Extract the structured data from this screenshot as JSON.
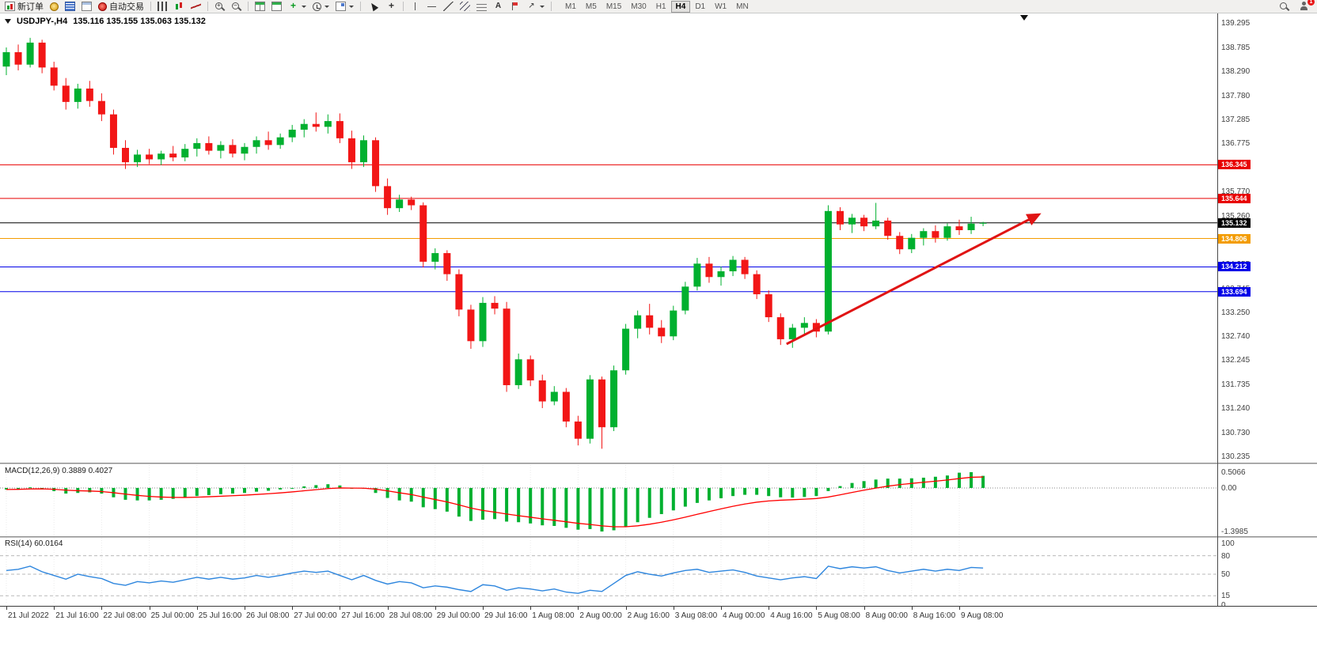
{
  "toolbar": {
    "buttons": [
      {
        "name": "new-order",
        "label": "新订单",
        "icon": "new-order"
      },
      {
        "name": "expert-advisors",
        "icon": "expert-advisors"
      },
      {
        "name": "market-watch",
        "icon": "market-watch"
      },
      {
        "name": "data-window",
        "icon": "data-window"
      },
      {
        "name": "auto-trading",
        "label": "自动交易",
        "icon": "auto-trading"
      },
      {
        "sep": true
      },
      {
        "name": "bars-chart",
        "icon": "bars-chart"
      },
      {
        "name": "candlestick-chart",
        "icon": "candlestick-chart"
      },
      {
        "name": "line-chart",
        "icon": "line-chart"
      },
      {
        "sep": true
      },
      {
        "name": "zoom-in",
        "icon": "zoom-in",
        "glyph": "+"
      },
      {
        "name": "zoom-out",
        "icon": "zoom-out",
        "glyph": "−"
      },
      {
        "sep": true
      },
      {
        "name": "tile-windows",
        "icon": "tile-windows"
      },
      {
        "name": "new-chart",
        "icon": "new-chart"
      },
      {
        "name": "indicators",
        "icon": "indicators",
        "glyph": "+",
        "caret": true
      },
      {
        "name": "periods",
        "icon": "periods",
        "caret": true
      },
      {
        "name": "templates",
        "icon": "templates",
        "caret": true
      },
      {
        "sep": true
      },
      {
        "name": "cursor",
        "icon": "cursor"
      },
      {
        "name": "crosshair",
        "icon": "crosshair",
        "glyph": "+"
      },
      {
        "sep": true
      },
      {
        "name": "vertical-line",
        "icon": "vertical-line"
      },
      {
        "name": "horizontal-line",
        "icon": "horizontal-line"
      },
      {
        "name": "trendline",
        "icon": "trendline"
      },
      {
        "name": "equidistant-channel",
        "icon": "equidistant-channel"
      },
      {
        "name": "fibonacci",
        "icon": "fibonacci"
      },
      {
        "name": "text",
        "icon": "text",
        "glyph": "A"
      },
      {
        "name": "label",
        "icon": "label"
      },
      {
        "name": "arrows",
        "icon": "arrows",
        "glyph": "↗",
        "caret": true
      },
      {
        "sep": true
      }
    ],
    "timeframes": [
      "M1",
      "M5",
      "M15",
      "M30",
      "H1",
      "H4",
      "D1",
      "W1",
      "MN"
    ],
    "active_timeframe": "H4",
    "right_buttons": [
      {
        "name": "search",
        "icon": "search"
      },
      {
        "name": "account",
        "icon": "account",
        "badge": "1"
      }
    ]
  },
  "chart": {
    "title": "USDJPY-,H4",
    "ohlc_line": "135.116 135.155 135.063 135.132"
  },
  "colors": {
    "candle_up": "#00b02f",
    "candle_down": "#f21616",
    "macd_histogram": "#00b02f",
    "macd_signal": "#ff0000",
    "rsi_line": "#2e86de",
    "trend_arrow": "#e01414"
  },
  "chart_data": {
    "type": "candlestick",
    "symbol": "USDJPY-",
    "timeframe": "H4",
    "ohlc": [
      [
        138.4,
        138.8,
        138.22,
        138.7
      ],
      [
        138.7,
        138.86,
        138.32,
        138.44
      ],
      [
        138.44,
        139.0,
        138.38,
        138.9
      ],
      [
        138.9,
        138.96,
        138.26,
        138.38
      ],
      [
        138.38,
        138.5,
        137.9,
        138.0
      ],
      [
        138.0,
        138.16,
        137.5,
        137.66
      ],
      [
        137.66,
        138.04,
        137.52,
        137.94
      ],
      [
        137.94,
        138.1,
        137.56,
        137.68
      ],
      [
        137.68,
        137.84,
        137.26,
        137.4
      ],
      [
        137.4,
        137.5,
        136.56,
        136.7
      ],
      [
        136.7,
        136.86,
        136.26,
        136.4
      ],
      [
        136.4,
        136.66,
        136.3,
        136.56
      ],
      [
        136.56,
        136.68,
        136.36,
        136.46
      ],
      [
        136.46,
        136.64,
        136.34,
        136.58
      ],
      [
        136.58,
        136.74,
        136.42,
        136.5
      ],
      [
        136.5,
        136.78,
        136.42,
        136.68
      ],
      [
        136.68,
        136.9,
        136.52,
        136.8
      ],
      [
        136.8,
        136.94,
        136.56,
        136.64
      ],
      [
        136.64,
        136.84,
        136.48,
        136.76
      ],
      [
        136.76,
        136.88,
        136.5,
        136.58
      ],
      [
        136.58,
        136.8,
        136.44,
        136.72
      ],
      [
        136.72,
        136.94,
        136.58,
        136.86
      ],
      [
        136.86,
        137.04,
        136.66,
        136.76
      ],
      [
        136.76,
        137.0,
        136.68,
        136.92
      ],
      [
        136.92,
        137.18,
        136.82,
        137.08
      ],
      [
        137.08,
        137.3,
        136.92,
        137.2
      ],
      [
        137.2,
        137.44,
        137.04,
        137.14
      ],
      [
        137.14,
        137.4,
        137.0,
        137.26
      ],
      [
        137.26,
        137.42,
        136.8,
        136.9
      ],
      [
        136.9,
        137.06,
        136.26,
        136.4
      ],
      [
        136.4,
        136.96,
        136.3,
        136.86
      ],
      [
        136.86,
        136.92,
        135.78,
        135.9
      ],
      [
        135.9,
        136.06,
        135.3,
        135.44
      ],
      [
        135.44,
        135.72,
        135.36,
        135.62
      ],
      [
        135.62,
        135.68,
        135.4,
        135.5
      ],
      [
        135.5,
        135.56,
        134.2,
        134.32
      ],
      [
        134.32,
        134.6,
        134.16,
        134.5
      ],
      [
        134.5,
        134.56,
        133.92,
        134.06
      ],
      [
        134.06,
        134.16,
        133.18,
        133.32
      ],
      [
        133.32,
        133.42,
        132.5,
        132.66
      ],
      [
        132.66,
        133.58,
        132.54,
        133.46
      ],
      [
        133.46,
        133.6,
        133.22,
        133.34
      ],
      [
        133.34,
        133.48,
        131.6,
        131.74
      ],
      [
        131.74,
        132.4,
        131.66,
        132.28
      ],
      [
        132.28,
        132.36,
        131.72,
        131.84
      ],
      [
        131.84,
        131.96,
        131.26,
        131.4
      ],
      [
        131.4,
        131.72,
        131.32,
        131.6
      ],
      [
        131.6,
        131.68,
        130.86,
        130.98
      ],
      [
        130.98,
        131.1,
        130.48,
        130.62
      ],
      [
        130.62,
        131.95,
        130.52,
        131.86
      ],
      [
        131.86,
        131.92,
        130.41,
        130.86
      ],
      [
        130.86,
        132.15,
        130.78,
        132.05
      ],
      [
        132.05,
        133.02,
        131.96,
        132.92
      ],
      [
        132.92,
        133.3,
        132.72,
        133.2
      ],
      [
        133.2,
        133.44,
        132.8,
        132.94
      ],
      [
        132.94,
        133.1,
        132.62,
        132.76
      ],
      [
        132.76,
        133.4,
        132.68,
        133.3
      ],
      [
        133.3,
        133.9,
        133.22,
        133.8
      ],
      [
        133.8,
        134.4,
        133.72,
        134.28
      ],
      [
        134.28,
        134.42,
        133.88,
        134.0
      ],
      [
        134.0,
        134.22,
        133.82,
        134.12
      ],
      [
        134.12,
        134.44,
        134.02,
        134.36
      ],
      [
        134.36,
        134.42,
        133.96,
        134.06
      ],
      [
        134.06,
        134.14,
        133.54,
        133.64
      ],
      [
        133.64,
        133.72,
        133.06,
        133.16
      ],
      [
        133.16,
        133.24,
        132.58,
        132.7
      ],
      [
        132.7,
        133.02,
        132.52,
        132.94
      ],
      [
        132.94,
        133.16,
        132.8,
        133.04
      ],
      [
        133.04,
        133.12,
        132.74,
        132.86
      ],
      [
        132.86,
        135.5,
        132.8,
        135.38
      ],
      [
        135.38,
        135.46,
        134.98,
        135.1
      ],
      [
        135.1,
        135.32,
        134.92,
        135.24
      ],
      [
        135.24,
        135.3,
        134.96,
        135.06
      ],
      [
        135.06,
        135.55,
        135.0,
        135.18
      ],
      [
        135.18,
        135.24,
        134.78,
        134.86
      ],
      [
        134.86,
        134.94,
        134.48,
        134.58
      ],
      [
        134.58,
        134.9,
        134.5,
        134.82
      ],
      [
        134.82,
        135.02,
        134.66,
        134.96
      ],
      [
        134.96,
        135.08,
        134.72,
        134.82
      ],
      [
        134.82,
        135.12,
        134.76,
        135.06
      ],
      [
        135.06,
        135.2,
        134.88,
        134.98
      ],
      [
        134.98,
        135.26,
        134.9,
        135.116
      ],
      [
        135.116,
        135.155,
        135.063,
        135.132
      ]
    ],
    "price_axis_ticks": [
      "139.295",
      "138.785",
      "138.290",
      "137.780",
      "137.285",
      "136.775",
      "136.285",
      "135.770",
      "135.260",
      "134.765",
      "134.255",
      "133.745",
      "133.250",
      "132.740",
      "132.245",
      "131.735",
      "131.240",
      "130.730",
      "130.235"
    ],
    "price_levels": [
      {
        "name": "resistance-line-upper",
        "value": 136.345,
        "label": "136.345",
        "color": "#e80000"
      },
      {
        "name": "resistance-line-lower",
        "value": 135.644,
        "label": "135.644",
        "color": "#e80000"
      },
      {
        "name": "current-price-line",
        "value": 135.132,
        "label": "135.132",
        "color": "#000000"
      },
      {
        "name": "orange-support-line",
        "value": 134.806,
        "label": "134.806",
        "color": "#f39c00"
      },
      {
        "name": "blue-support-line-upper",
        "value": 134.212,
        "label": "134.212",
        "color": "#0000e8"
      },
      {
        "name": "blue-support-line-lower",
        "value": 133.694,
        "label": "133.694",
        "color": "#0000e8"
      }
    ],
    "trend_arrow": {
      "from": {
        "index": 65.5,
        "price": 132.6
      },
      "to": {
        "index": 86,
        "price": 135.22
      },
      "width": 3
    },
    "time_axis_labels": [
      "21 Jul 2022",
      "21 Jul 16:00",
      "22 Jul 08:00",
      "25 Jul 00:00",
      "25 Jul 16:00",
      "26 Jul 08:00",
      "27 Jul 00:00",
      "27 Jul 16:00",
      "28 Jul 08:00",
      "29 Jul 00:00",
      "29 Jul 16:00",
      "1 Aug 08:00",
      "2 Aug 00:00",
      "2 Aug 16:00",
      "3 Aug 08:00",
      "4 Aug 00:00",
      "4 Aug 16:00",
      "5 Aug 08:00",
      "8 Aug 00:00",
      "8 Aug 16:00",
      "9 Aug 08:00"
    ],
    "macd": {
      "label": "MACD(12,26,9)",
      "main_value": "0.3889",
      "signal_value": "0.4027",
      "axis": {
        "max": 0.5066,
        "min": -1.3985,
        "max_label": "0.5066",
        "zero_label": "0.00",
        "min_label": "-1.3985"
      },
      "histogram": [
        -0.05,
        -0.02,
        0.02,
        -0.02,
        -0.1,
        -0.18,
        -0.16,
        -0.14,
        -0.18,
        -0.3,
        -0.38,
        -0.4,
        -0.4,
        -0.38,
        -0.35,
        -0.31,
        -0.26,
        -0.23,
        -0.2,
        -0.18,
        -0.16,
        -0.12,
        -0.09,
        -0.05,
        0.0,
        0.05,
        0.09,
        0.12,
        0.08,
        -0.02,
        -0.02,
        -0.16,
        -0.32,
        -0.4,
        -0.44,
        -0.62,
        -0.68,
        -0.76,
        -0.92,
        -1.06,
        -1.02,
        -1.0,
        -1.08,
        -1.1,
        -1.14,
        -1.2,
        -1.22,
        -1.28,
        -1.34,
        -1.32,
        -1.3985,
        -1.36,
        -1.24,
        -1.1,
        -0.96,
        -0.84,
        -0.72,
        -0.6,
        -0.48,
        -0.4,
        -0.33,
        -0.26,
        -0.22,
        -0.22,
        -0.26,
        -0.3,
        -0.31,
        -0.29,
        -0.26,
        -0.1,
        0.06,
        0.16,
        0.22,
        0.27,
        0.3,
        0.3,
        0.31,
        0.33,
        0.36,
        0.4,
        0.49,
        0.5066,
        0.3889
      ]
    },
    "rsi": {
      "label": "RSI(14)",
      "value": "60.0164",
      "levels": [
        80,
        50,
        15
      ],
      "axis_labels": [
        "100",
        "80",
        "50",
        "15",
        "0"
      ],
      "range": [
        0,
        100
      ],
      "values": [
        56,
        58,
        63,
        54,
        48,
        42,
        50,
        46,
        43,
        35,
        32,
        38,
        36,
        39,
        37,
        41,
        45,
        42,
        45,
        42,
        44,
        48,
        45,
        48,
        52,
        55,
        53,
        55,
        48,
        41,
        48,
        40,
        34,
        38,
        36,
        28,
        31,
        29,
        25,
        22,
        33,
        31,
        24,
        28,
        26,
        23,
        26,
        21,
        19,
        24,
        22,
        35,
        48,
        54,
        50,
        47,
        52,
        56,
        58,
        53,
        55,
        57,
        53,
        47,
        44,
        41,
        44,
        46,
        43,
        63,
        59,
        62,
        60,
        62,
        56,
        52,
        55,
        58,
        55,
        58,
        56,
        61,
        60.0164
      ]
    }
  }
}
